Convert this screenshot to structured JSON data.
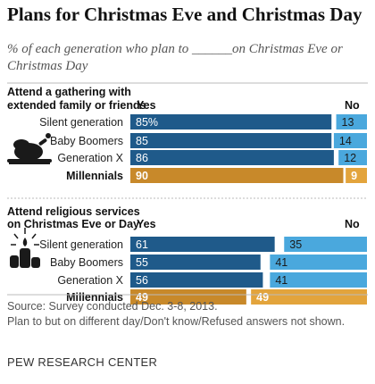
{
  "title": "Plans for Christmas Eve and Christmas Day",
  "subtitle": "% of each generation who plan to ______on Christmas Eve or Christmas Day",
  "footer": {
    "source": "Source: Survey conducted Dec. 3-8, 2013.",
    "note": "Plan to but on different day/Don't know/Refused answers not shown.",
    "brand": "PEW RESEARCH CENTER"
  },
  "colors": {
    "yes": "#1f5a8a",
    "no": "#4aa8dd",
    "yes_highlight": "#c8892a",
    "no_highlight": "#e3a43c"
  },
  "chart_data": [
    {
      "type": "bar",
      "stacked": true,
      "orientation": "horizontal",
      "title": "Attend a gathering with extended family or friends",
      "title_lines": [
        "Attend a gathering with",
        "extended family or friends"
      ],
      "icon": "roast-turkey-icon",
      "col_yes": "Yes",
      "col_no": "No",
      "xlim": [
        0,
        100
      ],
      "categories": [
        "Silent generation",
        "Baby Boomers",
        "Generation X",
        "Millennials"
      ],
      "highlight": "Millennials",
      "series": [
        {
          "name": "Yes",
          "values": [
            85,
            85,
            86,
            90
          ],
          "labels": [
            "85%",
            "85",
            "86",
            "90"
          ]
        },
        {
          "name": "No",
          "values": [
            13,
            14,
            12,
            9
          ],
          "labels": [
            "13",
            "14",
            "12",
            "9"
          ]
        }
      ]
    },
    {
      "type": "bar",
      "stacked": true,
      "orientation": "horizontal",
      "title": "Attend religious services on Christmas Eve or Day",
      "title_lines": [
        "Attend religious services",
        "on Christmas Eve or Day"
      ],
      "icon": "candles-icon",
      "col_yes": "Yes",
      "col_no": "No",
      "xlim": [
        0,
        100
      ],
      "categories": [
        "Silent generation",
        "Baby Boomers",
        "Generation X",
        "Millennials"
      ],
      "highlight": "Millennials",
      "series": [
        {
          "name": "Yes",
          "values": [
            61,
            55,
            56,
            49
          ],
          "labels": [
            "61",
            "55",
            "56",
            "49"
          ]
        },
        {
          "name": "No",
          "values": [
            35,
            41,
            41,
            49
          ],
          "labels": [
            "35",
            "41",
            "41",
            "49"
          ]
        }
      ]
    }
  ]
}
